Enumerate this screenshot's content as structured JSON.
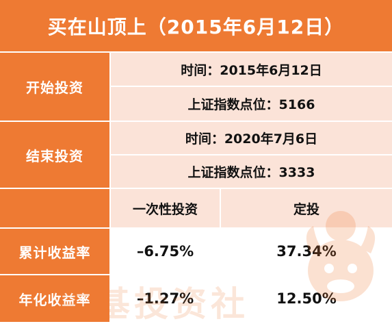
{
  "title": "买在山顶上（2015年6月12日）",
  "start": {
    "label": "开始投资",
    "time": "时间：2015年6月12日",
    "index": "上证指数点位：5166"
  },
  "end": {
    "label": "结束投资",
    "time": "时间：2020年7月6日",
    "index": "上证指数点位：3333"
  },
  "columns": {
    "lump_sum": "一次性投资",
    "dca": "定投"
  },
  "rows": [
    {
      "label": "累计收益率",
      "lump_sum": "–6.75%",
      "dca": "37.34%"
    },
    {
      "label": "年化收益率",
      "lump_sum": "–1.27%",
      "dca": "12.50%"
    }
  ],
  "watermark": "牛基投资社",
  "colors": {
    "orange": "#ee7a33",
    "pink": "#fbe3d8",
    "white": "#ffffff"
  }
}
